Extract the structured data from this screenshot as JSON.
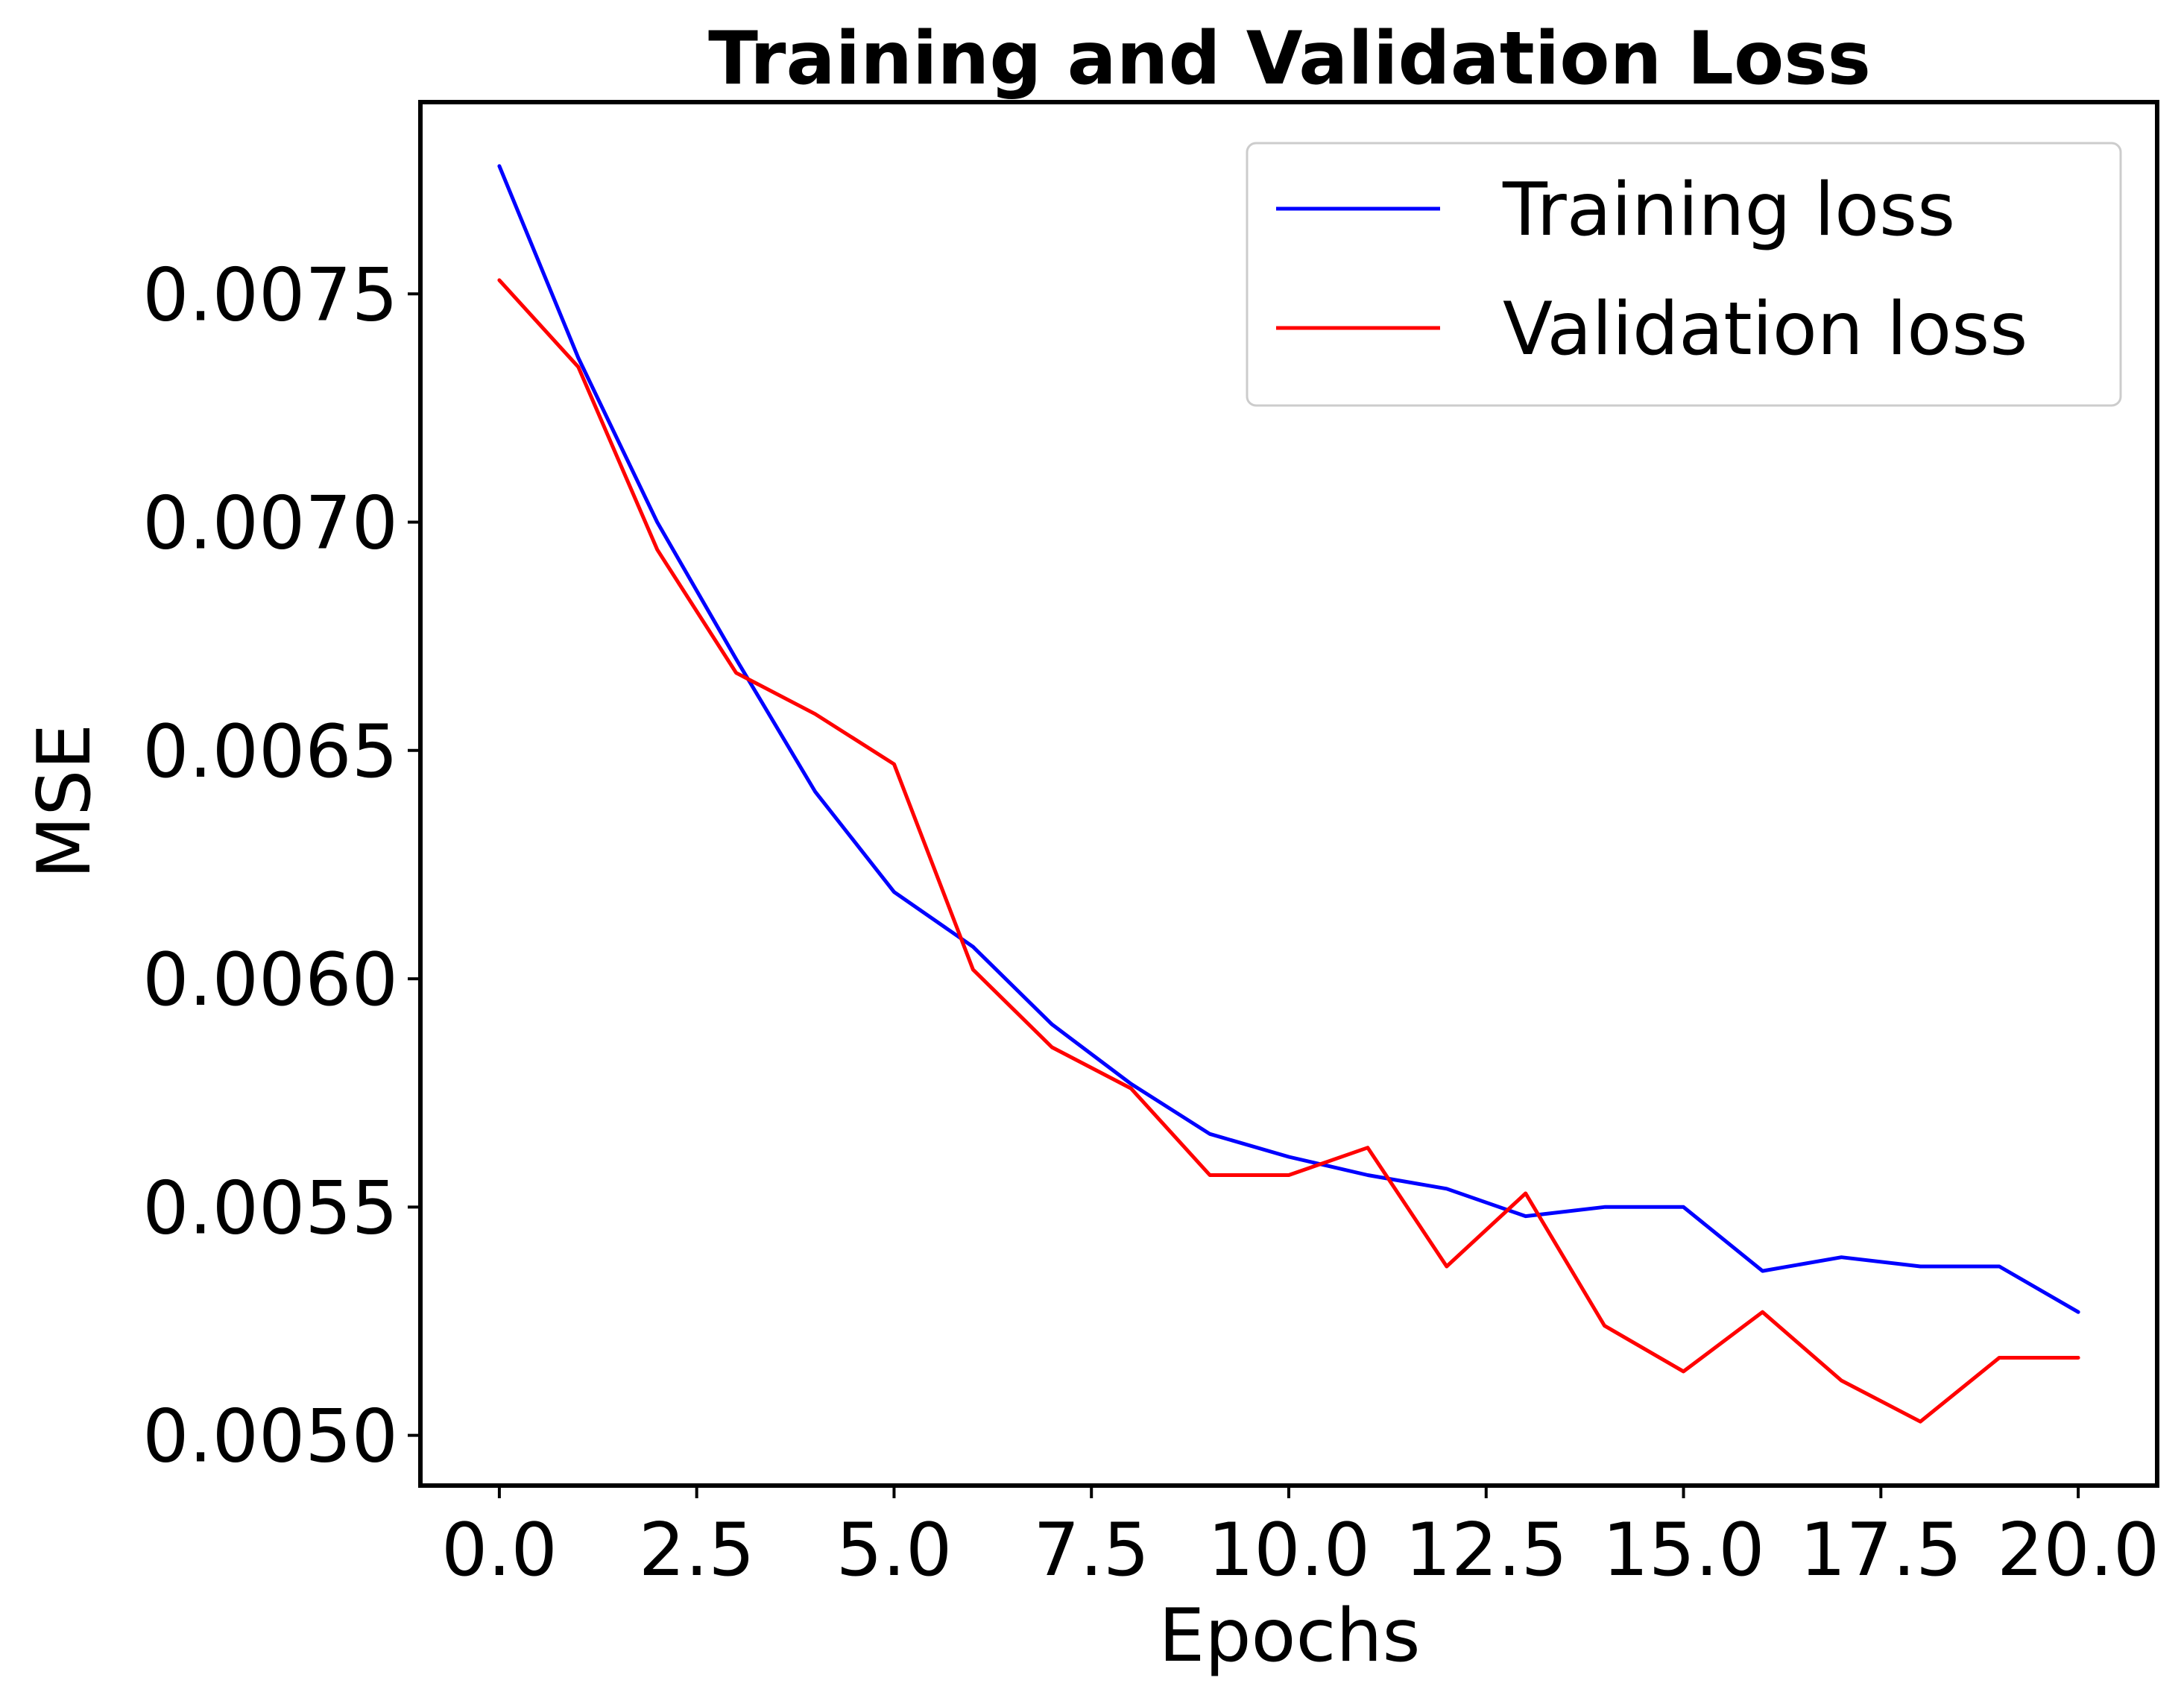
{
  "chart_data": {
    "type": "line",
    "title": "Training and Validation Loss",
    "xlabel": "Epochs",
    "ylabel": "MSE",
    "xlim": [
      -1.0,
      21.0
    ],
    "ylim": [
      0.00489,
      0.00792
    ],
    "xticks": [
      0.0,
      2.5,
      5.0,
      7.5,
      10.0,
      12.5,
      15.0,
      17.5,
      20.0
    ],
    "xtick_labels": [
      "0.0",
      "2.5",
      "5.0",
      "7.5",
      "10.0",
      "12.5",
      "15.0",
      "17.5",
      "20.0"
    ],
    "yticks": [
      0.005,
      0.0055,
      0.006,
      0.0065,
      0.007,
      0.0075
    ],
    "ytick_labels": [
      "0.0050",
      "0.0055",
      "0.0060",
      "0.0065",
      "0.0070",
      "0.0075"
    ],
    "grid": false,
    "legend_position": "top-right",
    "x": [
      0,
      1,
      2,
      3,
      4,
      5,
      6,
      7,
      8,
      9,
      10,
      11,
      12,
      13,
      14,
      15,
      16,
      17,
      18,
      19,
      20
    ],
    "series": [
      {
        "name": "Training loss",
        "color": "#0000ff",
        "values": [
          0.00778,
          0.00736,
          0.007,
          0.0067,
          0.00641,
          0.00619,
          0.00607,
          0.0059,
          0.00577,
          0.00566,
          0.00561,
          0.00557,
          0.00554,
          0.00548,
          0.0055,
          0.0055,
          0.00536,
          0.00539,
          0.00537,
          0.00537,
          0.00527
        ]
      },
      {
        "name": "Validation loss",
        "color": "#ff0000",
        "values": [
          0.00753,
          0.00734,
          0.00694,
          0.00667,
          0.00658,
          0.00647,
          0.00602,
          0.00585,
          0.00576,
          0.00557,
          0.00557,
          0.00563,
          0.00537,
          0.00553,
          0.00524,
          0.00514,
          0.00527,
          0.00512,
          0.00503,
          0.00517,
          0.00517
        ]
      }
    ]
  }
}
